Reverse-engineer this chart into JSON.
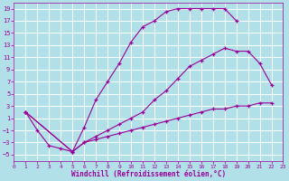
{
  "xlabel": "Windchill (Refroidissement éolien,°C)",
  "bg_color": "#b2e0e8",
  "grid_color": "#ffffff",
  "line_color": "#990099",
  "ylim": [
    -6,
    20
  ],
  "xlim": [
    0,
    23
  ],
  "yticks": [
    -5,
    -3,
    -1,
    1,
    3,
    5,
    7,
    9,
    11,
    13,
    15,
    17,
    19
  ],
  "xticks": [
    0,
    1,
    2,
    3,
    4,
    5,
    6,
    7,
    8,
    9,
    10,
    11,
    12,
    13,
    14,
    15,
    16,
    17,
    18,
    19,
    20,
    21,
    22,
    23
  ],
  "series": [
    {
      "x": [
        1,
        2,
        3,
        4,
        5,
        6,
        7,
        8,
        9,
        10,
        11,
        12,
        13,
        14,
        15,
        16,
        17,
        18,
        19
      ],
      "y": [
        2,
        -1,
        -3.5,
        -4,
        -4.5,
        -0.5,
        4,
        7,
        10,
        13.5,
        16,
        17,
        18.5,
        19,
        19,
        19,
        19,
        19,
        17
      ],
      "marker": "+"
    },
    {
      "x": [
        1,
        5,
        6,
        7,
        8,
        9,
        10,
        11,
        12,
        13,
        14,
        15,
        16,
        17,
        18,
        19,
        20,
        21,
        22
      ],
      "y": [
        2,
        -4.5,
        -3,
        -2.5,
        -2,
        -1.5,
        -1,
        -0.5,
        0,
        0.5,
        1,
        1.5,
        2,
        2.5,
        2.5,
        3,
        3,
        3.5,
        3.5
      ],
      "marker": "+"
    },
    {
      "x": [
        1,
        5,
        6,
        7,
        8,
        9,
        10,
        11,
        12,
        13,
        14,
        15,
        16,
        17,
        18,
        19,
        20,
        21,
        22
      ],
      "y": [
        2,
        -4.5,
        -3,
        -2,
        -1,
        0,
        1,
        2,
        4,
        5.5,
        7.5,
        9.5,
        10.5,
        11.5,
        12.5,
        12,
        12,
        10,
        6.5
      ],
      "marker": "+"
    }
  ]
}
